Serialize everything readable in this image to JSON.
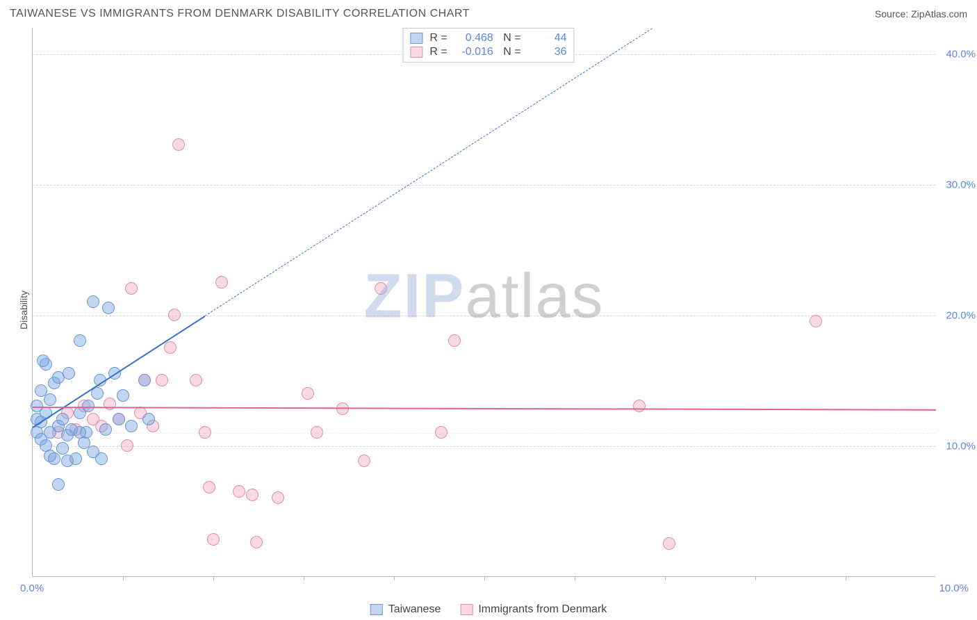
{
  "header": {
    "title": "TAIWANESE VS IMMIGRANTS FROM DENMARK DISABILITY CORRELATION CHART",
    "source": "Source: ZipAtlas.com"
  },
  "watermark": {
    "zip": "ZIP",
    "atlas": "atlas"
  },
  "chart": {
    "type": "scatter",
    "ylabel": "Disability",
    "xlim": [
      0,
      10.5
    ],
    "ylim": [
      0,
      42
    ],
    "yticks": [
      {
        "v": 10,
        "label": "10.0%"
      },
      {
        "v": 20,
        "label": "20.0%"
      },
      {
        "v": 30,
        "label": "30.0%"
      },
      {
        "v": 40,
        "label": "40.0%"
      }
    ],
    "xticks_minor": [
      1.05,
      2.1,
      3.15,
      4.2,
      5.25,
      6.3,
      7.35,
      8.4,
      9.45
    ],
    "xtick_labels": [
      {
        "v": 0,
        "label": "0.0%"
      },
      {
        "v": 10.5,
        "label": "10.0%"
      }
    ],
    "background_color": "#ffffff",
    "grid_color": "#d8d8d8",
    "marker_radius": 9,
    "marker_border_width": 1,
    "series": [
      {
        "name": "Taiwanese",
        "fill": "rgba(120,165,225,0.45)",
        "stroke": "#6a98d8",
        "R": "0.468",
        "N": "44",
        "trend": {
          "solid": {
            "x1": 0.0,
            "y1": 11.5,
            "x2": 2.0,
            "y2": 20.0
          },
          "dash": {
            "x1": 2.0,
            "y1": 20.0,
            "x2": 7.2,
            "y2": 42.0
          },
          "color": "#3b6fd0"
        },
        "points": [
          [
            0.05,
            11.0
          ],
          [
            0.05,
            12.0
          ],
          [
            0.05,
            13.0
          ],
          [
            0.1,
            10.5
          ],
          [
            0.1,
            11.8
          ],
          [
            0.1,
            14.2
          ],
          [
            0.15,
            10.0
          ],
          [
            0.15,
            12.5
          ],
          [
            0.15,
            16.2
          ],
          [
            0.2,
            9.2
          ],
          [
            0.2,
            11.0
          ],
          [
            0.2,
            13.5
          ],
          [
            0.25,
            9.0
          ],
          [
            0.25,
            14.8
          ],
          [
            0.3,
            11.5
          ],
          [
            0.3,
            15.2
          ],
          [
            0.35,
            9.8
          ],
          [
            0.35,
            12.0
          ],
          [
            0.4,
            8.8
          ],
          [
            0.4,
            10.8
          ],
          [
            0.42,
            15.5
          ],
          [
            0.45,
            11.2
          ],
          [
            0.5,
            9.0
          ],
          [
            0.55,
            12.5
          ],
          [
            0.55,
            18.0
          ],
          [
            0.6,
            10.2
          ],
          [
            0.62,
            11.0
          ],
          [
            0.7,
            9.5
          ],
          [
            0.7,
            21.0
          ],
          [
            0.75,
            14.0
          ],
          [
            0.78,
            15.0
          ],
          [
            0.8,
            9.0
          ],
          [
            0.85,
            11.2
          ],
          [
            0.88,
            20.5
          ],
          [
            0.95,
            15.5
          ],
          [
            1.0,
            12.0
          ],
          [
            1.05,
            13.8
          ],
          [
            1.15,
            11.5
          ],
          [
            1.3,
            15.0
          ],
          [
            1.35,
            12.0
          ],
          [
            0.3,
            7.0
          ],
          [
            0.12,
            16.5
          ],
          [
            0.55,
            11.0
          ],
          [
            0.65,
            13.0
          ]
        ]
      },
      {
        "name": "Immigrants from Denmark",
        "fill": "rgba(240,160,185,0.40)",
        "stroke": "#e28fa8",
        "R": "-0.016",
        "N": "36",
        "trend": {
          "solid": {
            "x1": 0.0,
            "y1": 13.0,
            "x2": 10.5,
            "y2": 12.8
          },
          "color": "#e06394"
        },
        "points": [
          [
            0.3,
            11.0
          ],
          [
            0.4,
            12.5
          ],
          [
            0.5,
            11.2
          ],
          [
            0.6,
            13.0
          ],
          [
            0.7,
            12.0
          ],
          [
            0.8,
            11.5
          ],
          [
            0.9,
            13.2
          ],
          [
            1.0,
            12.0
          ],
          [
            1.1,
            10.0
          ],
          [
            1.15,
            22.0
          ],
          [
            1.25,
            12.5
          ],
          [
            1.3,
            15.0
          ],
          [
            1.4,
            11.5
          ],
          [
            1.5,
            15.0
          ],
          [
            1.6,
            17.5
          ],
          [
            1.65,
            20.0
          ],
          [
            1.7,
            33.0
          ],
          [
            1.9,
            15.0
          ],
          [
            2.0,
            11.0
          ],
          [
            2.05,
            6.8
          ],
          [
            2.1,
            2.8
          ],
          [
            2.2,
            22.5
          ],
          [
            2.4,
            6.5
          ],
          [
            2.55,
            6.2
          ],
          [
            2.6,
            2.6
          ],
          [
            2.85,
            6.0
          ],
          [
            3.2,
            14.0
          ],
          [
            3.3,
            11.0
          ],
          [
            3.6,
            12.8
          ],
          [
            3.85,
            8.8
          ],
          [
            4.05,
            22.0
          ],
          [
            4.75,
            11.0
          ],
          [
            4.9,
            18.0
          ],
          [
            7.05,
            13.0
          ],
          [
            7.4,
            2.5
          ],
          [
            9.1,
            19.5
          ]
        ]
      }
    ]
  },
  "legend_bottom": [
    {
      "label": "Taiwanese"
    },
    {
      "label": "Immigrants from Denmark"
    }
  ]
}
